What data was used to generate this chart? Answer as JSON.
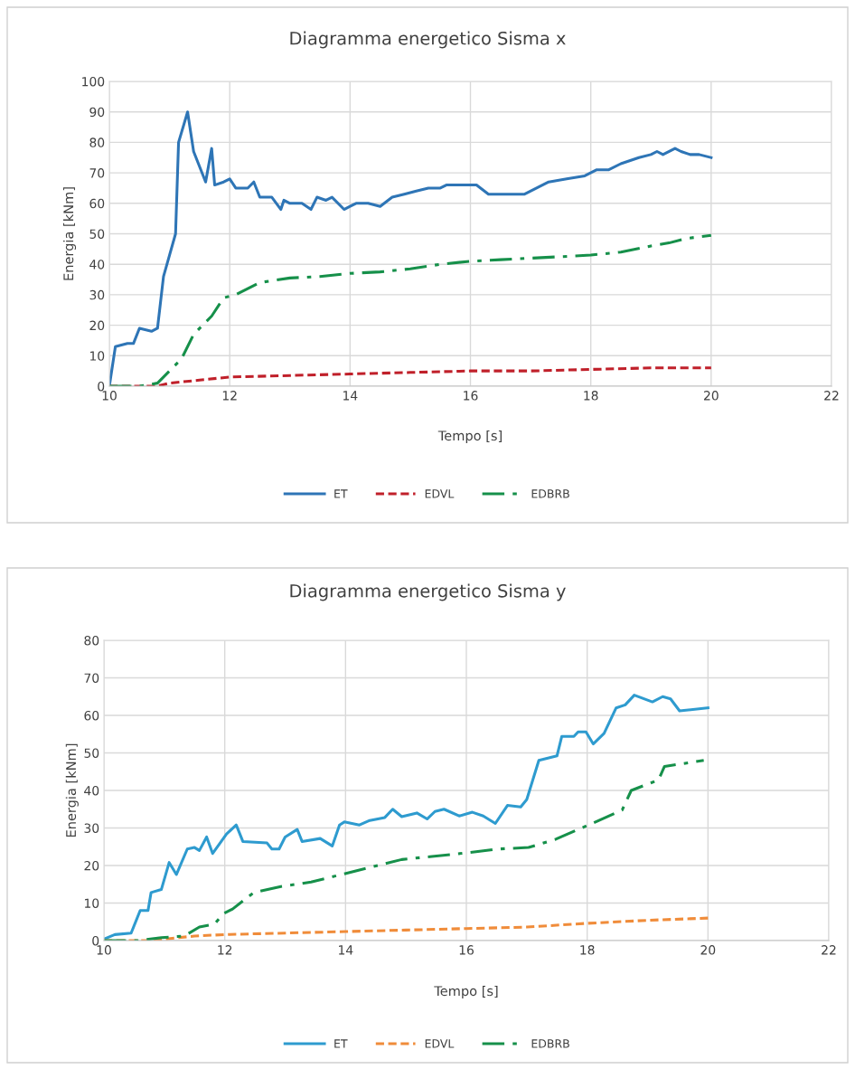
{
  "chart_data": [
    {
      "type": "line",
      "title": "Diagramma energetico Sisma x",
      "xlabel": "Tempo [s]",
      "ylabel": "Energia [kNm]",
      "xlim": [
        10,
        22
      ],
      "xticks": [
        10,
        12,
        14,
        16,
        18,
        20,
        22
      ],
      "ylim": [
        0,
        100
      ],
      "yticks": [
        0,
        10,
        20,
        30,
        40,
        50,
        60,
        70,
        80,
        90,
        100
      ],
      "grid": true,
      "legend": "bottom",
      "marker": "none",
      "series": [
        {
          "name": "ET",
          "color": "#2e75b6",
          "line_style": "solid",
          "x": [
            10,
            10.1,
            10.3,
            10.4,
            10.5,
            10.7,
            10.8,
            10.9,
            11.0,
            11.1,
            11.15,
            11.3,
            11.4,
            11.6,
            11.7,
            11.75,
            11.9,
            12,
            12.1,
            12.3,
            12.4,
            12.5,
            12.7,
            12.85,
            12.9,
            13.0,
            13.2,
            13.35,
            13.45,
            13.6,
            13.7,
            13.9,
            14.0,
            14.1,
            14.3,
            14.5,
            14.7,
            14.9,
            15.1,
            15.3,
            15.5,
            15.6,
            15.8,
            16.1,
            16.3,
            16.6,
            16.9,
            17.1,
            17.3,
            17.6,
            17.9,
            18.1,
            18.3,
            18.5,
            18.8,
            19.0,
            19.1,
            19.2,
            19.4,
            19.5,
            19.65,
            19.8,
            20.0
          ],
          "values": [
            0,
            13,
            14,
            14,
            19,
            18,
            19,
            36,
            43,
            50,
            80,
            90,
            77,
            67,
            78,
            66,
            67,
            68,
            65,
            65,
            67,
            62,
            62,
            58,
            61,
            60,
            60,
            58,
            62,
            61,
            62,
            58,
            59,
            60,
            60,
            59,
            62,
            63,
            64,
            65,
            65,
            66,
            66,
            66,
            63,
            63,
            63,
            65,
            67,
            68,
            69,
            71,
            71,
            73,
            75,
            76,
            77,
            76,
            78,
            77,
            76,
            76,
            75
          ]
        },
        {
          "name": "EDVL",
          "color": "#c0202a",
          "line_style": "dashed",
          "x": [
            10,
            10.8,
            11,
            11.5,
            12,
            13,
            14,
            15,
            16,
            17,
            18,
            19,
            20
          ],
          "values": [
            0,
            0,
            1,
            2,
            3,
            3.5,
            4,
            4.5,
            5,
            5,
            5.5,
            6,
            6
          ]
        },
        {
          "name": "EDBRB",
          "color": "#16904a",
          "line_style": "dashdot",
          "x": [
            10,
            10.5,
            10.8,
            11,
            11.2,
            11.4,
            11.7,
            11.9,
            12.1,
            12.3,
            12.5,
            13,
            13.5,
            14,
            14.5,
            15,
            15.5,
            16,
            16.5,
            17,
            17.5,
            18,
            18.5,
            19,
            19.3,
            19.6,
            20
          ],
          "values": [
            0,
            0,
            1,
            5,
            9,
            17,
            23,
            29,
            30,
            32,
            34,
            35.5,
            36,
            37,
            37.5,
            38.5,
            40,
            41,
            41.5,
            42,
            42.5,
            43,
            44,
            46,
            47,
            48.5,
            49.5
          ]
        }
      ]
    },
    {
      "type": "line",
      "title": "Diagramma energetico Sisma y",
      "xlabel": "Tempo [s]",
      "ylabel": "Energia [kNm]",
      "xlim": [
        10,
        22
      ],
      "xticks": [
        10,
        12,
        14,
        16,
        18,
        20,
        22
      ],
      "ylim": [
        0,
        80
      ],
      "yticks": [
        0,
        10,
        20,
        30,
        40,
        50,
        60,
        70,
        80
      ],
      "grid": true,
      "legend": "bottom",
      "marker": "none",
      "series": [
        {
          "name": "ET",
          "color": "#2e9bcf",
          "line_style": "solid",
          "x": [
            10,
            10.18,
            10.45,
            10.6,
            10.73,
            10.78,
            10.95,
            11.08,
            11.2,
            11.38,
            11.5,
            11.58,
            11.7,
            11.8,
            12.03,
            12.19,
            12.3,
            12.7,
            12.78,
            12.9,
            13.0,
            13.2,
            13.28,
            13.58,
            13.78,
            13.9,
            13.98,
            14.23,
            14.4,
            14.65,
            14.78,
            14.93,
            15.18,
            15.35,
            15.48,
            15.63,
            15.88,
            16.1,
            16.28,
            16.48,
            16.68,
            16.9,
            17.0,
            17.2,
            17.5,
            17.58,
            17.78,
            17.85,
            17.98,
            18.1,
            18.28,
            18.48,
            18.63,
            18.78,
            19.08,
            19.25,
            19.38,
            19.53,
            20
          ],
          "values": [
            0.4,
            1.6,
            2,
            8,
            8,
            12.8,
            13.6,
            20.8,
            17.6,
            24.4,
            24.8,
            24,
            27.6,
            23.2,
            28.4,
            30.8,
            26.4,
            26,
            24.4,
            24.4,
            27.6,
            29.6,
            26.4,
            27.2,
            25.2,
            30.8,
            31.6,
            30.8,
            32,
            32.8,
            35,
            33,
            34,
            32.4,
            34.4,
            35,
            33.2,
            34.2,
            33.2,
            31.2,
            36,
            35.6,
            37.6,
            48,
            49.2,
            54.4,
            54.4,
            55.6,
            55.6,
            52.4,
            55.2,
            62,
            62.8,
            65.4,
            63.6,
            65,
            64.4,
            61.2,
            62
          ]
        },
        {
          "name": "EDVL",
          "color": "#f08c3a",
          "line_style": "dashed",
          "x": [
            10,
            10.8,
            11,
            11.5,
            12,
            13,
            14,
            15,
            16,
            17,
            18,
            19,
            20
          ],
          "values": [
            0,
            0,
            0.4,
            1.2,
            1.6,
            2,
            2.4,
            2.8,
            3.2,
            3.6,
            4.6,
            5.4,
            6
          ]
        },
        {
          "name": "EDBRB",
          "color": "#16904a",
          "line_style": "dashdot",
          "x": [
            10,
            10.58,
            10.95,
            11.33,
            11.58,
            11.83,
            11.98,
            12.13,
            12.48,
            12.93,
            13.43,
            13.93,
            14.43,
            14.93,
            15.43,
            16.13,
            16.53,
            17.03,
            17.48,
            18.08,
            18.58,
            18.73,
            19.18,
            19.28,
            19.93
          ],
          "values": [
            0,
            0,
            0.8,
            1.2,
            3.6,
            4.4,
            7.2,
            8.4,
            12.8,
            14.4,
            15.6,
            17.6,
            19.6,
            21.6,
            22.4,
            23.6,
            24.4,
            24.8,
            27,
            31.2,
            34.8,
            40,
            42.8,
            46.4,
            48
          ]
        }
      ]
    }
  ]
}
